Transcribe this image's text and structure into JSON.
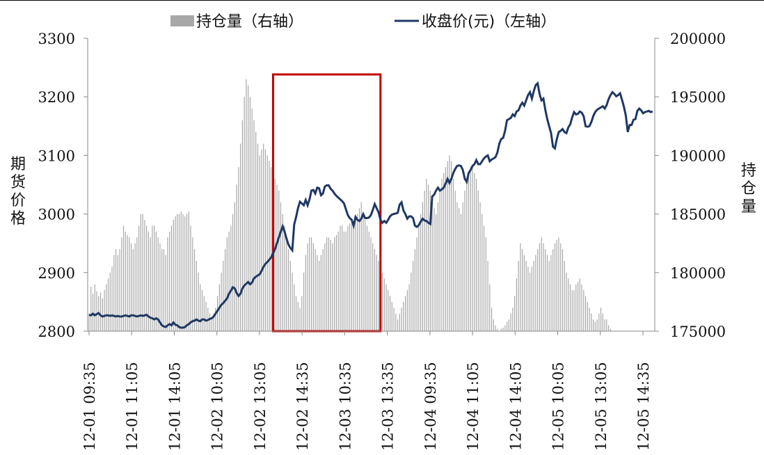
{
  "chart_data": {
    "type": "bar+line",
    "legend": {
      "position": "top-center",
      "bar_label": "持仓量（右轴）",
      "line_label": "收盘价(元)（左轴）"
    },
    "y_left": {
      "label": "期货价格",
      "range": [
        2800,
        3300
      ],
      "ticks": [
        "3300",
        "3200",
        "3100",
        "3000",
        "2900",
        "2800"
      ]
    },
    "y_right": {
      "label": "持仓量",
      "range": [
        175000,
        200000
      ],
      "ticks": [
        "200000",
        "195000",
        "190000",
        "185000",
        "180000",
        "175000"
      ]
    },
    "x_tick_labels": [
      "12-01 09:35",
      "12-01 11:05",
      "12-01 14:05",
      "12-02 10:05",
      "12-02 13:05",
      "12-02 14:35",
      "12-03 10:35",
      "12-03 13:35",
      "12-04 09:35",
      "12-04 11:05",
      "12-04 14:05",
      "12-05 10:05",
      "12-05 13:05",
      "12-05 14:35"
    ],
    "highlight_region": {
      "from_index": 96,
      "to_index": 152,
      "color": "#c00000"
    },
    "series": [
      {
        "name": "收盘价(元)",
        "axis": "left",
        "color": "#1f3864",
        "values": [
          2828,
          2827,
          2830,
          2827,
          2829,
          2831,
          2827,
          2825,
          2826,
          2827,
          2827,
          2826,
          2827,
          2826,
          2825,
          2826,
          2825,
          2825,
          2826,
          2827,
          2826,
          2825,
          2827,
          2827,
          2826,
          2825,
          2826,
          2827,
          2826,
          2827,
          2828,
          2825,
          2823,
          2822,
          2820,
          2822,
          2820,
          2815,
          2810,
          2808,
          2807,
          2810,
          2812,
          2810,
          2815,
          2811,
          2810,
          2807,
          2806,
          2806,
          2807,
          2810,
          2812,
          2815,
          2817,
          2818,
          2820,
          2818,
          2817,
          2820,
          2820,
          2818,
          2819,
          2821,
          2822,
          2825,
          2830,
          2835,
          2840,
          2845,
          2848,
          2852,
          2856,
          2864,
          2869,
          2875,
          2873,
          2865,
          2860,
          2864,
          2873,
          2878,
          2881,
          2884,
          2880,
          2883,
          2890,
          2893,
          2895,
          2897,
          2903,
          2910,
          2915,
          2918,
          2922,
          2926,
          2933,
          2940,
          2950,
          2960,
          2970,
          2979,
          2970,
          2958,
          2948,
          2942,
          2938,
          2982,
          2995,
          3010,
          3021,
          3018,
          3015,
          3024,
          3015,
          3025,
          3040,
          3041,
          3035,
          3045,
          3044,
          3032,
          3035,
          3047,
          3049,
          3049,
          3043,
          3040,
          3035,
          3031,
          3028,
          3025,
          3022,
          3018,
          3008,
          2998,
          2993,
          2990,
          2980,
          2995,
          2990,
          2988,
          2992,
          3000,
          2993,
          2993,
          2994,
          2998,
          3007,
          3017,
          3010,
          3003,
          2990,
          2985,
          2988,
          2985,
          2990,
          2996,
          2999,
          3000,
          3001,
          3002,
          3016,
          3020,
          3006,
          3000,
          2992,
          2996,
          2996,
          2993,
          2980,
          2978,
          2981,
          2987,
          2992,
          2989,
          2988,
          2985,
          2983,
          3030,
          3033,
          3040,
          3045,
          3040,
          3042,
          3045,
          3052,
          3060,
          3053,
          3060,
          3070,
          3077,
          3082,
          3083,
          3082,
          3075,
          3060,
          3055,
          3070,
          3075,
          3082,
          3085,
          3092,
          3085,
          3085,
          3090,
          3095,
          3098,
          3100,
          3090,
          3093,
          3095,
          3097,
          3105,
          3120,
          3128,
          3130,
          3142,
          3160,
          3162,
          3164,
          3170,
          3167,
          3175,
          3177,
          3185,
          3190,
          3185,
          3194,
          3203,
          3208,
          3197,
          3210,
          3220,
          3223,
          3205,
          3194,
          3197,
          3178,
          3162,
          3150,
          3138,
          3115,
          3112,
          3128,
          3140,
          3142,
          3145,
          3140,
          3138,
          3148,
          3153,
          3165,
          3174,
          3170,
          3171,
          3175,
          3173,
          3167,
          3150,
          3149,
          3150,
          3157,
          3167,
          3174,
          3178,
          3180,
          3182,
          3184,
          3180,
          3186,
          3196,
          3203,
          3208,
          3205,
          3201,
          3203,
          3206,
          3195,
          3183,
          3168,
          3140,
          3152,
          3152,
          3161,
          3162,
          3176,
          3180,
          3177,
          3172,
          3174,
          3175,
          3176,
          3174,
          3175
        ]
      },
      {
        "name": "持仓量",
        "axis": "right",
        "color": "#a8a8a8",
        "values": [
          176500,
          178800,
          178200,
          179000,
          178400,
          178000,
          178300,
          177800,
          178500,
          179000,
          179500,
          180000,
          180500,
          181500,
          182000,
          181500,
          182000,
          183000,
          184000,
          183500,
          183200,
          183000,
          182500,
          182000,
          182500,
          183000,
          184000,
          185000,
          185000,
          184500,
          184000,
          183500,
          183000,
          184000,
          184000,
          183500,
          183000,
          182500,
          182000,
          182000,
          181500,
          183000,
          183500,
          184000,
          184500,
          184800,
          185000,
          185000,
          185200,
          185000,
          184800,
          185000,
          185200,
          184000,
          183000,
          182000,
          181000,
          180000,
          179000,
          178500,
          178000,
          177500,
          177000,
          176500,
          176000,
          176500,
          177000,
          178000,
          179000,
          180000,
          181000,
          182000,
          183000,
          183500,
          184000,
          185000,
          186000,
          187500,
          189000,
          191000,
          193000,
          195000,
          196500,
          196000,
          195000,
          194000,
          193000,
          192000,
          191000,
          190000,
          190500,
          191000,
          190500,
          190000,
          189500,
          189000,
          188500,
          188000,
          187500,
          187000,
          186000,
          185000,
          184000,
          183000,
          182000,
          181000,
          180000,
          179000,
          178000,
          177500,
          177000,
          178000,
          180000,
          181500,
          182500,
          183000,
          183000,
          182500,
          182000,
          181500,
          181000,
          181500,
          182000,
          182500,
          183000,
          183000,
          182800,
          182500,
          183000,
          183200,
          183500,
          184000,
          184000,
          183500,
          183500,
          184000,
          184200,
          184500,
          184000,
          184500,
          185000,
          185500,
          186000,
          185000,
          184500,
          184000,
          183500,
          183000,
          182500,
          182000,
          181500,
          181000,
          180500,
          180000,
          179500,
          179000,
          178500,
          178000,
          177500,
          177000,
          176500,
          176000,
          176500,
          177000,
          177500,
          178000,
          178500,
          179000,
          180000,
          181000,
          182000,
          183000,
          184000,
          185000,
          186000,
          187000,
          188000,
          187500,
          187000,
          186000,
          185500,
          185000,
          186000,
          187000,
          188000,
          188500,
          189000,
          189500,
          190000,
          189500,
          188000,
          187000,
          186000,
          185500,
          185000,
          186000,
          187000,
          188000,
          188500,
          189000,
          189000,
          188500,
          188000,
          187000,
          186000,
          185000,
          184000,
          183000,
          181000,
          179000,
          177000,
          176000,
          175500,
          175200,
          175000,
          175200,
          175300,
          175500,
          175800,
          176000,
          176500,
          177000,
          178000,
          179500,
          181000,
          182500,
          182000,
          181500,
          181000,
          180500,
          180000,
          180500,
          181000,
          181500,
          182000,
          182500,
          183000,
          182500,
          182000,
          181500,
          181000,
          181500,
          182000,
          182500,
          182800,
          183000,
          182500,
          182000,
          181000,
          180000,
          179500,
          179000,
          178500,
          178500,
          179000,
          179200,
          179500,
          179000,
          178500,
          178000,
          177500,
          177000,
          176500,
          176000,
          175800,
          176000,
          176500,
          177000,
          176500,
          176000,
          176000,
          175500,
          175200,
          175000,
          175000,
          175000
        ]
      }
    ],
    "grid": false
  }
}
